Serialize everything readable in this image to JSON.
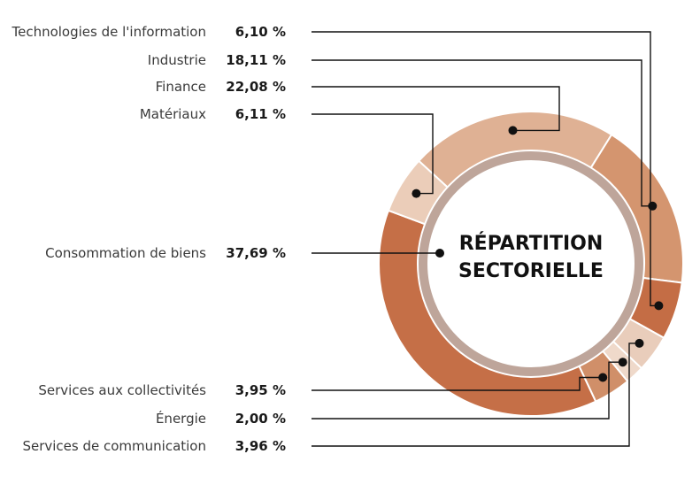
{
  "chart_data": {
    "type": "pie",
    "title": "RÉPARTITION SECTORIELLE",
    "title_lines": [
      "RÉPARTITION",
      "SECTORIELLE"
    ],
    "slices": [
      {
        "label": "Finance",
        "value": 22.08,
        "display": "22,08 %",
        "color": "#dfb194"
      },
      {
        "label": "Industrie",
        "value": 18.11,
        "display": "18,11 %",
        "color": "#d4956f"
      },
      {
        "label": "Technologies de l'information",
        "value": 6.1,
        "display": "6,10 %",
        "color": "#c46d45"
      },
      {
        "label": "Services de communication",
        "value": 3.96,
        "display": "3,96 %",
        "color": "#e9cdbb"
      },
      {
        "label": "Énergie",
        "value": 2.0,
        "display": "2,00 %",
        "color": "#efd9ca"
      },
      {
        "label": "Services aux collectivités",
        "value": 3.95,
        "display": "3,95 %",
        "color": "#d08f69"
      },
      {
        "label": "Consommation de biens",
        "value": 37.69,
        "display": "37,69 %",
        "color": "#c56f47"
      },
      {
        "label": "Matériaux",
        "value": 6.11,
        "display": "6,11 %",
        "color": "#ebcdb9"
      }
    ],
    "legend_order": [
      "Technologies de l'information",
      "Industrie",
      "Finance",
      "Matériaux",
      "Consommation de biens",
      "Services aux collectivités",
      "Énergie",
      "Services de communication"
    ]
  }
}
